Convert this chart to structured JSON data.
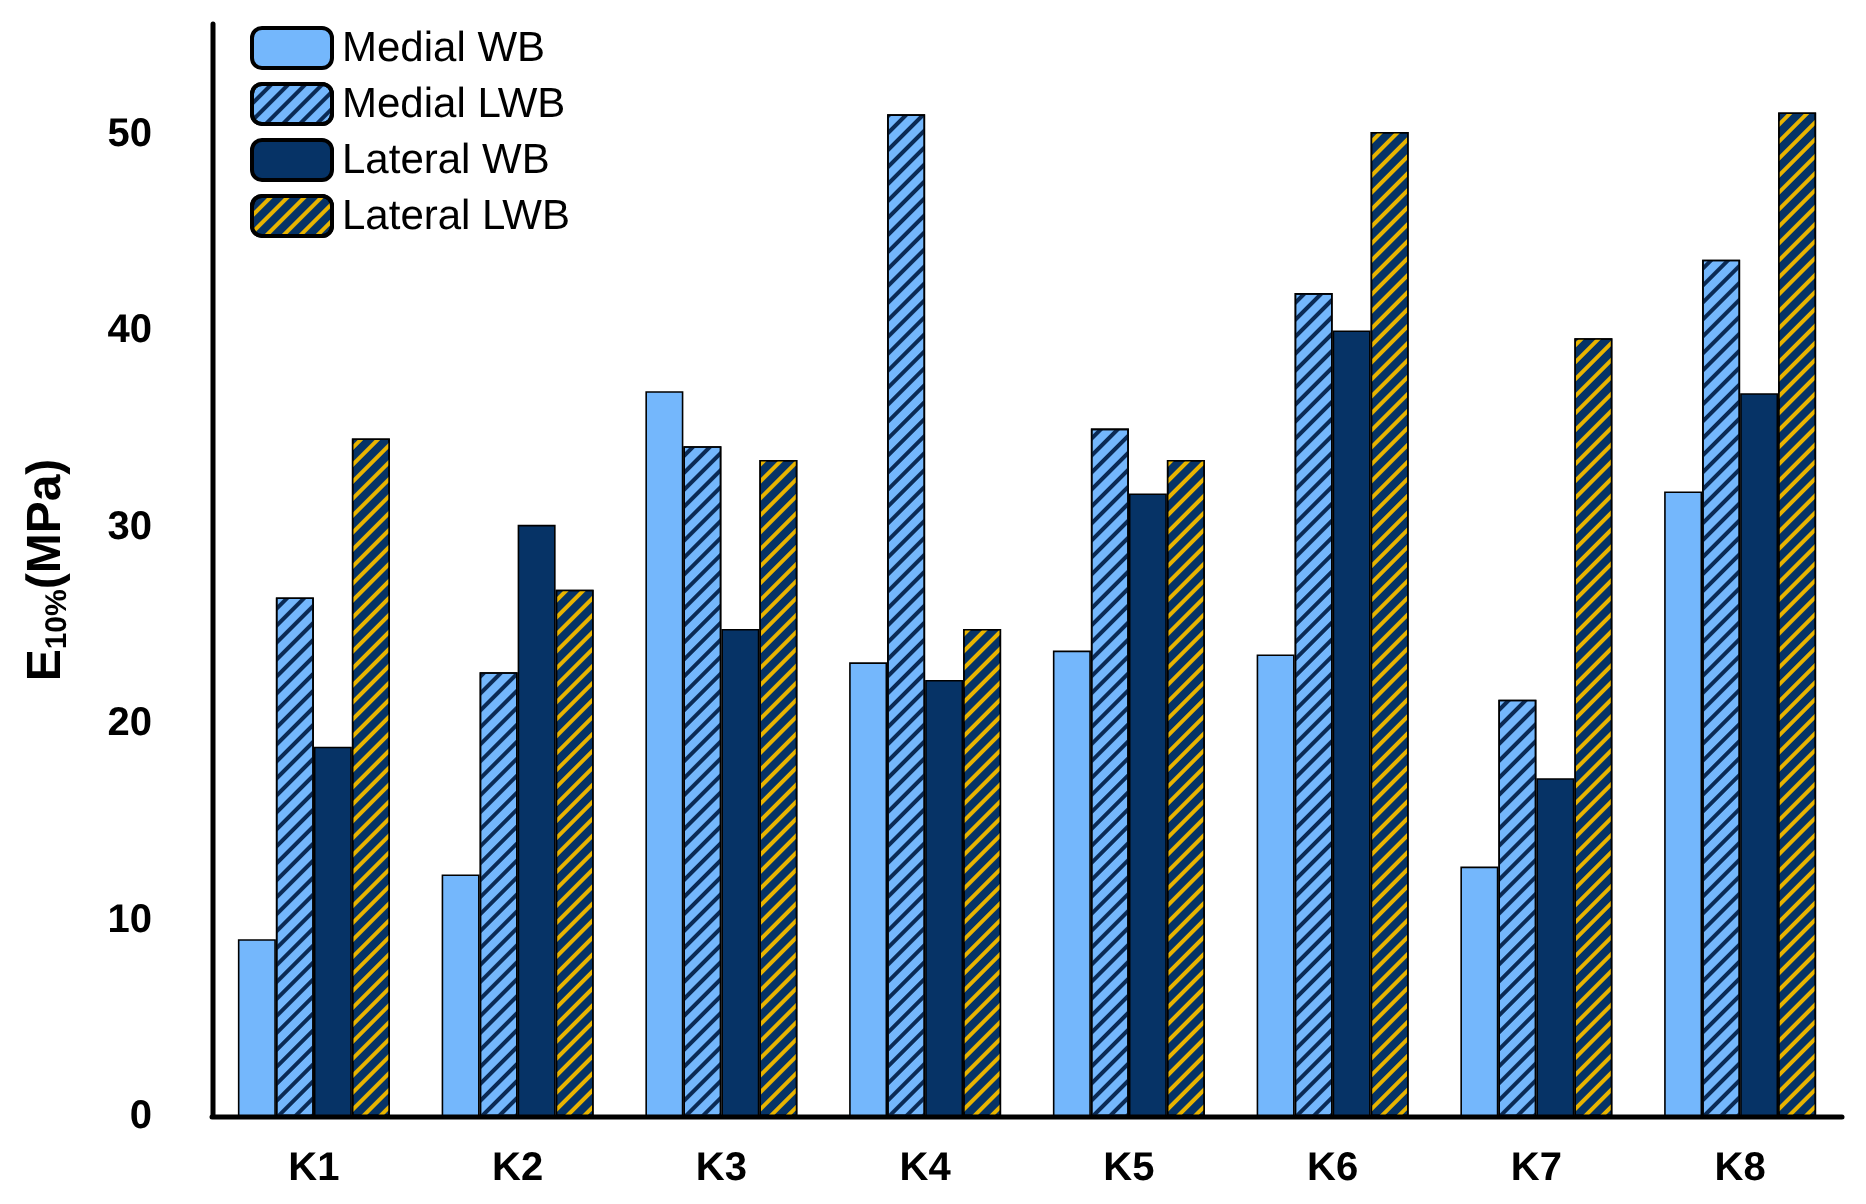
{
  "chart_data": {
    "type": "bar",
    "ylabel": "E$_{10%}$(MPa)",
    "categories": [
      "K1",
      "K2",
      "K3",
      "K4",
      "K5",
      "K6",
      "K7",
      "K8"
    ],
    "series": [
      {
        "name": "Medial WB",
        "color": "#74b7fc",
        "values": [
          9.0,
          12.3,
          36.9,
          23.1,
          23.7,
          23.5,
          12.7,
          31.8
        ]
      },
      {
        "name": "Medial LWB",
        "color": "#74b7fc",
        "values": [
          26.4,
          22.6,
          34.1,
          51.0,
          35.0,
          41.9,
          21.2,
          43.6
        ]
      },
      {
        "name": "Lateral WB",
        "color": "#063366",
        "values": [
          18.8,
          30.1,
          24.8,
          22.2,
          31.7,
          40.0,
          17.2,
          36.8
        ]
      },
      {
        "name": "Lateral LWB",
        "color": "#063366",
        "values": [
          34.5,
          26.8,
          33.4,
          24.8,
          33.4,
          50.1,
          39.6,
          51.1
        ]
      }
    ],
    "ylim": [
      0,
      55.6
    ],
    "yticks": [
      0,
      10,
      20,
      30,
      40,
      50
    ],
    "grid": false,
    "legend": "top left"
  }
}
